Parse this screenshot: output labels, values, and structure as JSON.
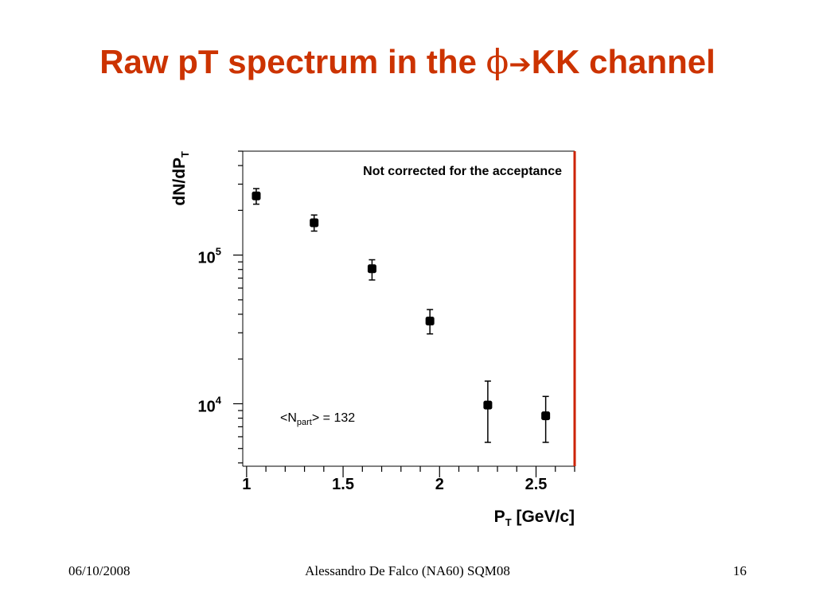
{
  "slide": {
    "title_main": "Raw pT spectrum in the ",
    "title_phi": "ϕ",
    "title_arrow": "➔",
    "title_end": "KK channel",
    "title_color": "#cc3300"
  },
  "footer": {
    "date": "06/10/2008",
    "center": "Alessandro De Falco (NA60) SQM08",
    "page": "16"
  },
  "chart_data": {
    "type": "scatter",
    "title": "",
    "xlabel_main": "P",
    "xlabel_sub": "T",
    "xlabel_rest": " [GeV/c]",
    "ylabel_main": "dN/dP",
    "ylabel_sub": "T",
    "yscale": "log",
    "xlim": [
      0.98,
      2.7
    ],
    "ylim": [
      3800,
      500000
    ],
    "x_ticks": [
      {
        "value": 1,
        "label": "1"
      },
      {
        "value": 1.5,
        "label": "1.5"
      },
      {
        "value": 2,
        "label": "2"
      },
      {
        "value": 2.5,
        "label": "2.5"
      }
    ],
    "y_ticks": [
      {
        "value": 10000,
        "label_base": "10",
        "label_exp": "4"
      },
      {
        "value": 100000,
        "label_base": "10",
        "label_exp": "5"
      }
    ],
    "annotation_top": "Not corrected for the acceptance",
    "annotation_npart_pre": "<N",
    "annotation_npart_sub": "part",
    "annotation_npart_post": "> = 132",
    "frame_right_color": "#cc2200",
    "series": [
      {
        "x": [
          1.05,
          1.35,
          1.65,
          1.95,
          2.25,
          2.55
        ],
        "y": [
          250000,
          165000,
          81000,
          36000,
          9800,
          8300
        ],
        "yerr_low": [
          220000,
          145000,
          68000,
          29500,
          5500,
          5500
        ],
        "yerr_high": [
          280000,
          186000,
          93000,
          43000,
          14200,
          11200
        ]
      }
    ],
    "grid": false,
    "legend": "none"
  }
}
